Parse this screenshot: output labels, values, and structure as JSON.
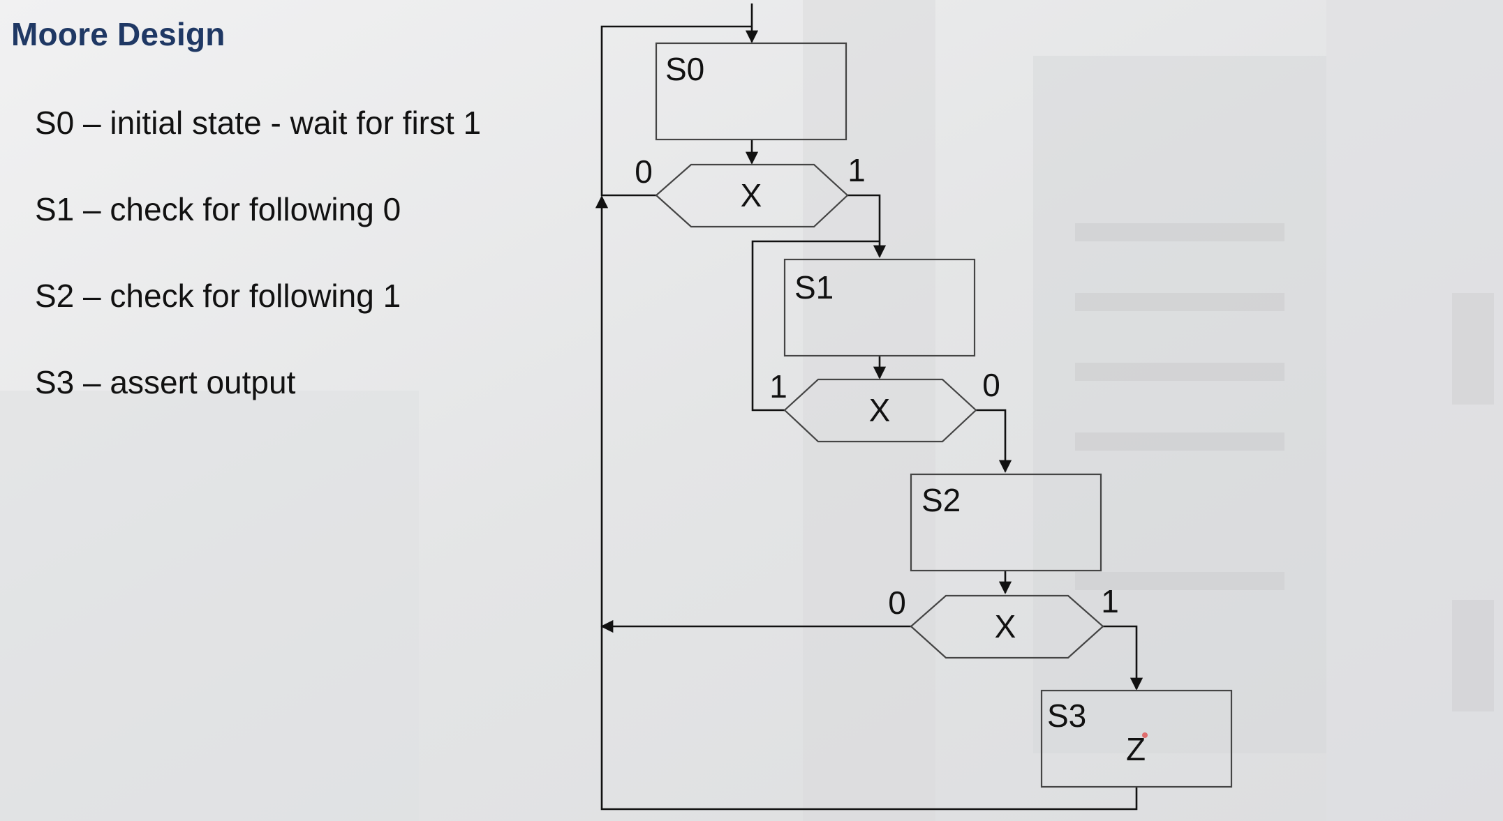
{
  "slide": {
    "title": "Moore Design"
  },
  "states_list": [
    "S0 – initial state - wait for first 1",
    "S1 – check for following 0",
    "S2 – check for following 1",
    "S3 – assert output"
  ],
  "flowchart": {
    "states": [
      {
        "name": "S0",
        "output": ""
      },
      {
        "name": "S1",
        "output": ""
      },
      {
        "name": "S2",
        "output": ""
      },
      {
        "name": "S3",
        "output": "Z"
      }
    ],
    "decisions": [
      {
        "var": "X",
        "left_label": "0",
        "right_label": "1"
      },
      {
        "var": "X",
        "left_label": "1",
        "right_label": "0"
      },
      {
        "var": "X",
        "left_label": "0",
        "right_label": "1"
      }
    ]
  }
}
